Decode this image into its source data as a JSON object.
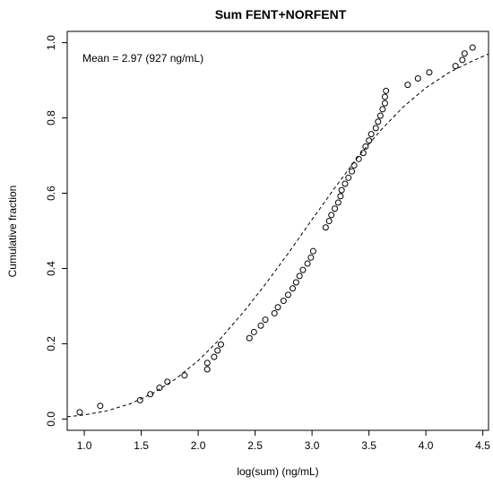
{
  "chart_data": {
    "type": "scatter",
    "title": "Sum FENT+NORFENT",
    "xlabel": "log(sum) (ng/mL)",
    "ylabel": "Cumulative fraction",
    "annotation": "Mean = 2.97 (927 ng/mL)",
    "xlim": [
      0.85,
      4.55
    ],
    "ylim": [
      -0.03,
      1.03
    ],
    "x_ticks": [
      1.0,
      1.5,
      2.0,
      2.5,
      3.0,
      3.5,
      4.0,
      4.5
    ],
    "x_tick_labels": [
      "1.0",
      "1.5",
      "2.0",
      "2.5",
      "3.0",
      "3.5",
      "4.0",
      "4.5"
    ],
    "y_ticks": [
      0.0,
      0.2,
      0.4,
      0.6,
      0.8,
      1.0
    ],
    "y_tick_labels": [
      "0.0",
      "0.2",
      "0.4",
      "0.6",
      "0.8",
      "1.0"
    ],
    "grid": false,
    "series": [
      {
        "marker": "open-circle",
        "x": [
          0.96,
          1.14,
          1.49,
          1.58,
          1.66,
          1.73,
          1.88,
          2.08,
          2.08,
          2.14,
          2.17,
          2.2,
          2.45,
          2.49,
          2.55,
          2.59,
          2.67,
          2.7,
          2.75,
          2.79,
          2.83,
          2.86,
          2.89,
          2.92,
          2.96,
          2.99,
          3.01,
          3.12,
          3.15,
          3.17,
          3.2,
          3.23,
          3.25,
          3.26,
          3.29,
          3.32,
          3.35,
          3.37,
          3.41,
          3.45,
          3.47,
          3.5,
          3.52,
          3.56,
          3.58,
          3.6,
          3.62,
          3.64,
          3.64,
          3.65,
          3.84,
          3.93,
          4.03,
          4.26,
          4.32,
          4.34,
          4.41
        ],
        "y": [
          0.018,
          0.035,
          0.05,
          0.066,
          0.083,
          0.099,
          0.116,
          0.132,
          0.149,
          0.165,
          0.182,
          0.198,
          0.215,
          0.231,
          0.248,
          0.264,
          0.281,
          0.297,
          0.314,
          0.33,
          0.347,
          0.363,
          0.38,
          0.396,
          0.413,
          0.429,
          0.446,
          0.509,
          0.526,
          0.542,
          0.559,
          0.575,
          0.592,
          0.608,
          0.625,
          0.641,
          0.658,
          0.674,
          0.691,
          0.707,
          0.724,
          0.74,
          0.757,
          0.773,
          0.79,
          0.806,
          0.823,
          0.839,
          0.856,
          0.872,
          0.888,
          0.905,
          0.921,
          0.938,
          0.954,
          0.971,
          0.987
        ]
      },
      {
        "style": "dashed",
        "x": [
          0.85,
          1.0,
          1.2,
          1.4,
          1.6,
          1.8,
          2.0,
          2.2,
          2.4,
          2.6,
          2.8,
          3.0,
          3.2,
          3.4,
          3.6,
          3.8,
          4.0,
          4.2,
          4.4,
          4.55
        ],
        "y": [
          0.006,
          0.011,
          0.022,
          0.04,
          0.068,
          0.106,
          0.155,
          0.215,
          0.285,
          0.362,
          0.444,
          0.53,
          0.614,
          0.695,
          0.766,
          0.829,
          0.88,
          0.92,
          0.95,
          0.97
        ]
      }
    ]
  }
}
